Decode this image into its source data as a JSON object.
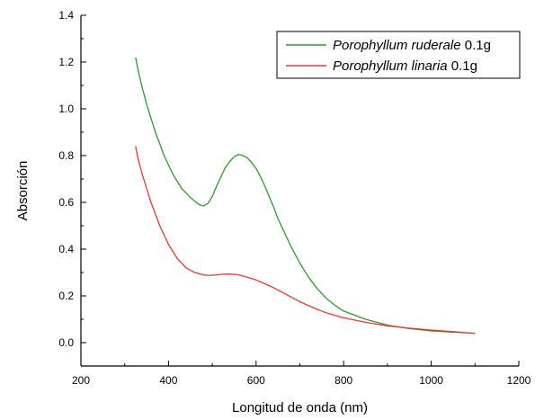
{
  "chart_data": {
    "type": "line",
    "xlabel": "Longitud de onda (nm)",
    "ylabel": "Absorción",
    "xlim": [
      200,
      1200
    ],
    "ylim": [
      -0.1,
      1.4
    ],
    "x_ticks": [
      200,
      400,
      600,
      800,
      1000,
      1200
    ],
    "x_tick_labels": [
      "200",
      "400",
      "600",
      "800",
      "1000",
      "1200"
    ],
    "y_ticks": [
      0.0,
      0.2,
      0.4,
      0.6,
      0.8,
      1.0,
      1.2,
      1.4
    ],
    "y_tick_labels": [
      "0.0",
      "0.2",
      "0.4",
      "0.6",
      "0.8",
      "1.0",
      "1.2",
      "1.4"
    ],
    "grid": false,
    "legend_position": "top-right",
    "series": [
      {
        "name_italic": "Porophyllum ruderale",
        "name_suffix": " 0.1g",
        "color": "#2e9a2e",
        "x": [
          325,
          330,
          340,
          350,
          360,
          370,
          380,
          390,
          400,
          410,
          420,
          430,
          440,
          450,
          460,
          470,
          480,
          490,
          500,
          510,
          520,
          530,
          540,
          550,
          560,
          570,
          580,
          590,
          600,
          610,
          620,
          630,
          640,
          650,
          660,
          680,
          700,
          720,
          740,
          760,
          780,
          800,
          850,
          900,
          950,
          1000,
          1050,
          1100
        ],
        "y": [
          1.22,
          1.17,
          1.09,
          1.02,
          0.96,
          0.9,
          0.85,
          0.8,
          0.76,
          0.72,
          0.69,
          0.66,
          0.64,
          0.62,
          0.605,
          0.59,
          0.585,
          0.595,
          0.625,
          0.67,
          0.71,
          0.75,
          0.775,
          0.795,
          0.805,
          0.8,
          0.79,
          0.77,
          0.745,
          0.71,
          0.67,
          0.625,
          0.58,
          0.53,
          0.49,
          0.41,
          0.34,
          0.28,
          0.23,
          0.19,
          0.16,
          0.135,
          0.1,
          0.075,
          0.06,
          0.05,
          0.045,
          0.04
        ]
      },
      {
        "name_italic": "Porophyllum linaria",
        "name_suffix": " 0.1g",
        "color": "#e53935",
        "x": [
          325,
          330,
          340,
          350,
          360,
          370,
          380,
          390,
          400,
          410,
          420,
          430,
          440,
          450,
          460,
          470,
          480,
          490,
          500,
          510,
          520,
          530,
          540,
          550,
          560,
          570,
          580,
          600,
          620,
          640,
          660,
          680,
          700,
          720,
          740,
          760,
          780,
          800,
          850,
          900,
          950,
          1000,
          1050,
          1100
        ],
        "y": [
          0.84,
          0.79,
          0.72,
          0.66,
          0.6,
          0.55,
          0.5,
          0.46,
          0.42,
          0.39,
          0.36,
          0.34,
          0.32,
          0.31,
          0.3,
          0.295,
          0.29,
          0.288,
          0.288,
          0.29,
          0.292,
          0.293,
          0.293,
          0.292,
          0.29,
          0.285,
          0.28,
          0.268,
          0.252,
          0.235,
          0.215,
          0.195,
          0.175,
          0.158,
          0.142,
          0.128,
          0.116,
          0.106,
          0.087,
          0.072,
          0.062,
          0.054,
          0.047,
          0.04
        ]
      }
    ]
  }
}
